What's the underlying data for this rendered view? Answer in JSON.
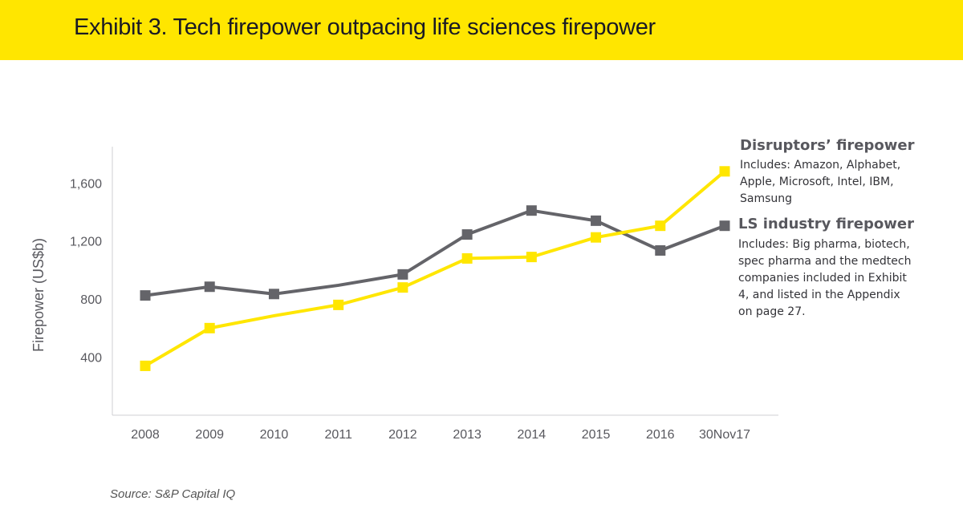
{
  "title": "Exhibit 3. Tech firepower outpacing life sciences firepower",
  "source": "Source: S&P Capital IQ",
  "colors": {
    "banner": "#ffe600",
    "disruptors": "#ffe600",
    "ls_industry": "#646469",
    "axis": "#cfcfd3",
    "text": "#58585e"
  },
  "legend": {
    "disruptors": {
      "title": "Disruptors’ firepower",
      "desc_lines": [
        "Includes: Amazon, Alphabet,",
        "Apple, Microsoft, Intel, IBM,",
        "Samsung"
      ]
    },
    "ls_industry": {
      "title": "LS industry firepower",
      "desc_lines": [
        "Includes: Big pharma, biotech,",
        "spec pharma and the medtech",
        "companies included in Exhibit",
        "4, and listed in the Appendix",
        "on page 27."
      ]
    }
  },
  "chart_data": {
    "type": "line",
    "title": "Exhibit 3. Tech firepower outpacing life sciences firepower",
    "xlabel": "",
    "ylabel": "Firepower (US$b)",
    "categories": [
      "2008",
      "2009",
      "2010",
      "2011",
      "2012",
      "2013",
      "2014",
      "2015",
      "2016",
      "30Nov17"
    ],
    "yticks": [
      "400",
      "800",
      "1,200",
      "1,600"
    ],
    "ytick_values": [
      400,
      800,
      1200,
      1600
    ],
    "ylim": [
      0,
      1850
    ],
    "grid": false,
    "series": [
      {
        "name": "LS industry firepower",
        "key": "ls_industry",
        "values": [
          825,
          885,
          835,
          null,
          970,
          1245,
          1410,
          1340,
          1135,
          1305
        ]
      },
      {
        "name": "Disruptors’ firepower",
        "key": "disruptors",
        "values": [
          340,
          600,
          null,
          760,
          880,
          1080,
          1090,
          1225,
          1305,
          1680
        ]
      }
    ],
    "hidden_points": {
      "ls_industry": {
        "2011": 895
      },
      "disruptors": {
        "2010": 685
      }
    }
  }
}
